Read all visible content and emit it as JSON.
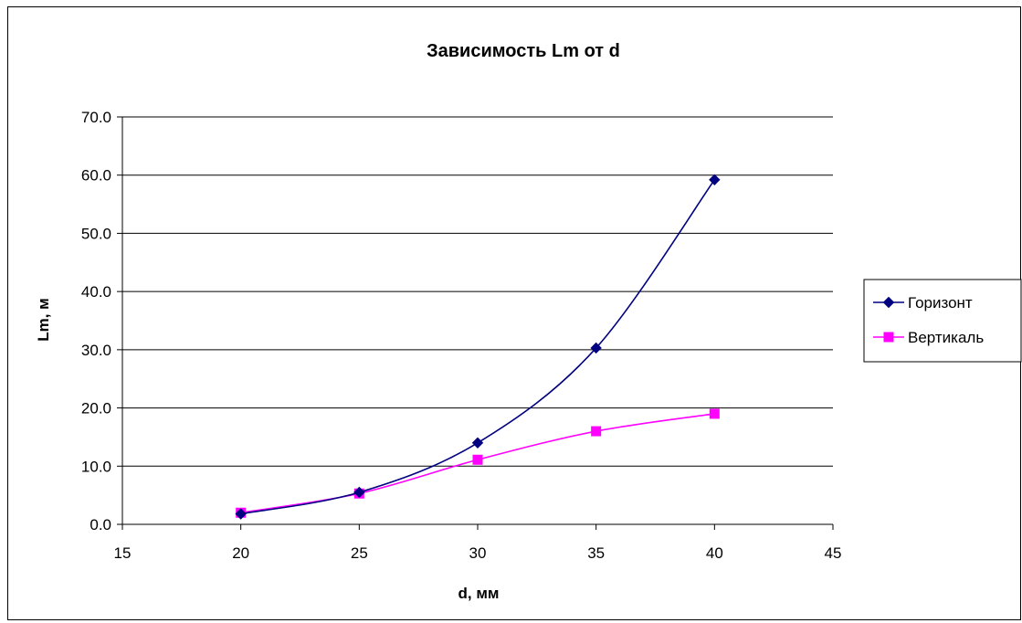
{
  "chart_data": {
    "type": "scatter",
    "title": "Зависимость Lm от d",
    "xlabel": "d, мм",
    "ylabel": "Lm, м",
    "xlim": [
      15,
      45
    ],
    "ylim": [
      0,
      70
    ],
    "x_ticks": [
      15,
      20,
      25,
      30,
      35,
      40,
      45
    ],
    "y_ticks": [
      "0.0",
      "10.0",
      "20.0",
      "30.0",
      "40.0",
      "50.0",
      "60.0",
      "70.0"
    ],
    "grid": "horizontal major gridlines",
    "legend_position": "right",
    "smoothed_lines": true,
    "series": [
      {
        "name": "Горизонт",
        "color": "#000080",
        "marker": "diamond",
        "x": [
          20,
          25,
          30,
          35,
          40
        ],
        "y": [
          1.8,
          5.5,
          14.0,
          30.3,
          59.2
        ]
      },
      {
        "name": "Вертикаль",
        "color": "#ff00ff",
        "marker": "square",
        "x": [
          20,
          25,
          30,
          35,
          40
        ],
        "y": [
          2.0,
          5.3,
          11.1,
          16.0,
          19.0
        ]
      }
    ]
  }
}
